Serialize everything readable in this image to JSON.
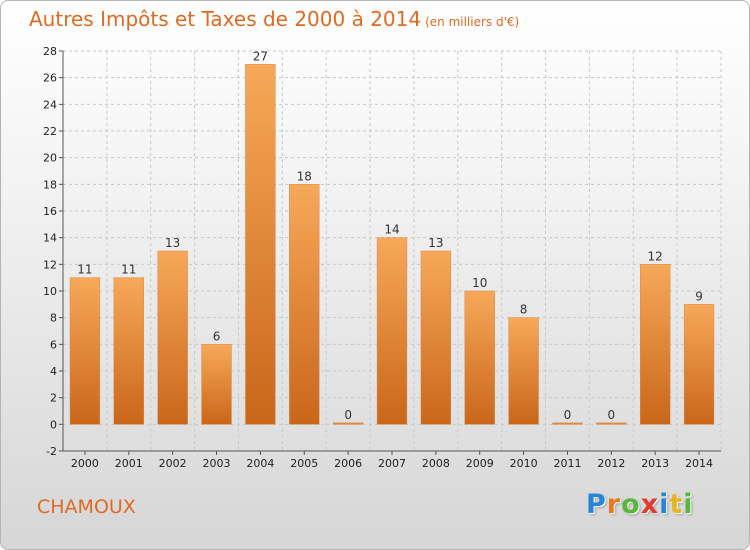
{
  "title": "Autres Impôts et Taxes de 2000 à 2014",
  "subtitle": "(en milliers d'€)",
  "commune": "CHAMOUX",
  "logo": {
    "letters": [
      "P",
      "r",
      "o",
      "x",
      "i",
      "t",
      "i"
    ],
    "colors": [
      "#2a84d6",
      "#e8791e",
      "#57b63c",
      "#e23a2c",
      "#2a84d6",
      "#e8b41e",
      "#57b63c"
    ]
  },
  "colors": {
    "bar_top": "#f7a859",
    "bar_bottom": "#c9661a",
    "accent": "#e06a22"
  },
  "chart_data": {
    "type": "bar",
    "categories": [
      "2000",
      "2001",
      "2002",
      "2003",
      "2004",
      "2005",
      "2006",
      "2007",
      "2008",
      "2009",
      "2010",
      "2011",
      "2012",
      "2013",
      "2014"
    ],
    "values": [
      11,
      11,
      13,
      6,
      27,
      18,
      0,
      14,
      13,
      10,
      8,
      0,
      0,
      12,
      9
    ],
    "ylim": [
      -2,
      28
    ],
    "yticks": [
      -2,
      0,
      2,
      4,
      6,
      8,
      10,
      12,
      14,
      16,
      18,
      20,
      22,
      24,
      26,
      28
    ],
    "grid": true,
    "data_labels": true
  }
}
